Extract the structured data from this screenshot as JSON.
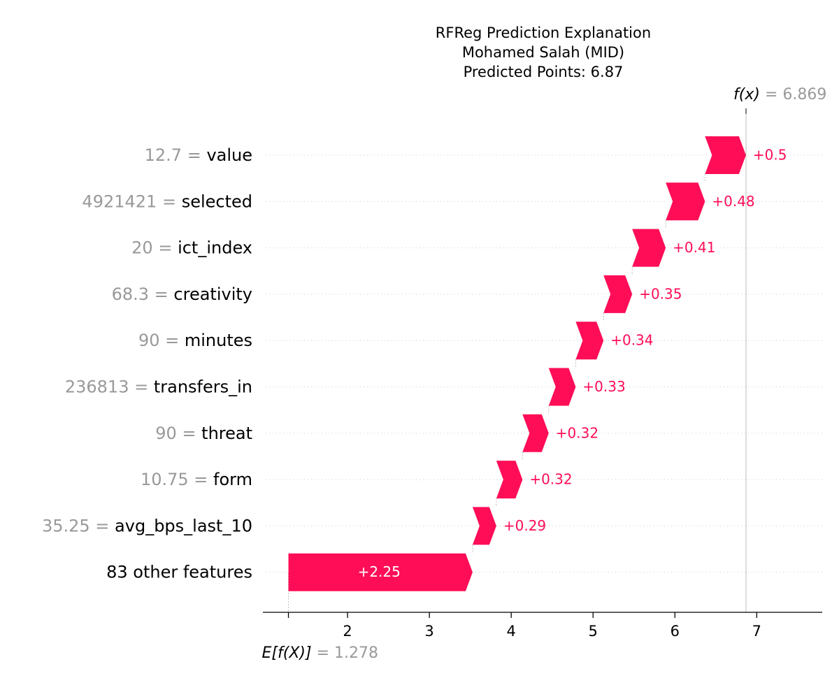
{
  "chart_data": {
    "type": "bar",
    "subtype": "waterfall",
    "title": "RFReg Prediction Explanation",
    "subtitle_lines": [
      "Mohamed Salah (MID)",
      "Predicted Points: 6.87"
    ],
    "fx_label": "f(x)",
    "fx_value": "6.869",
    "base_label": "E[f(X)]",
    "base_value": "1.278",
    "positive_color": "#ff0d57",
    "axis": {
      "xlim": [
        1.0,
        7.8
      ],
      "ticks": [
        2,
        3,
        4,
        5,
        6,
        7
      ]
    },
    "features": [
      {
        "value": "12.7",
        "name": "value",
        "contribution": 0.5,
        "label": "+0.5"
      },
      {
        "value": "4921421",
        "name": "selected",
        "contribution": 0.48,
        "label": "+0.48"
      },
      {
        "value": "20",
        "name": "ict_index",
        "contribution": 0.41,
        "label": "+0.41"
      },
      {
        "value": "68.3",
        "name": "creativity",
        "contribution": 0.35,
        "label": "+0.35"
      },
      {
        "value": "90",
        "name": "minutes",
        "contribution": 0.34,
        "label": "+0.34"
      },
      {
        "value": "236813",
        "name": "transfers_in",
        "contribution": 0.33,
        "label": "+0.33"
      },
      {
        "value": "90",
        "name": "threat",
        "contribution": 0.32,
        "label": "+0.32"
      },
      {
        "value": "10.75",
        "name": "form",
        "contribution": 0.32,
        "label": "+0.32"
      },
      {
        "value": "35.25",
        "name": "avg_bps_last_10",
        "contribution": 0.29,
        "label": "+0.29"
      },
      {
        "value": "",
        "name": "83 other features",
        "contribution": 2.25,
        "label": "+2.25"
      }
    ]
  }
}
